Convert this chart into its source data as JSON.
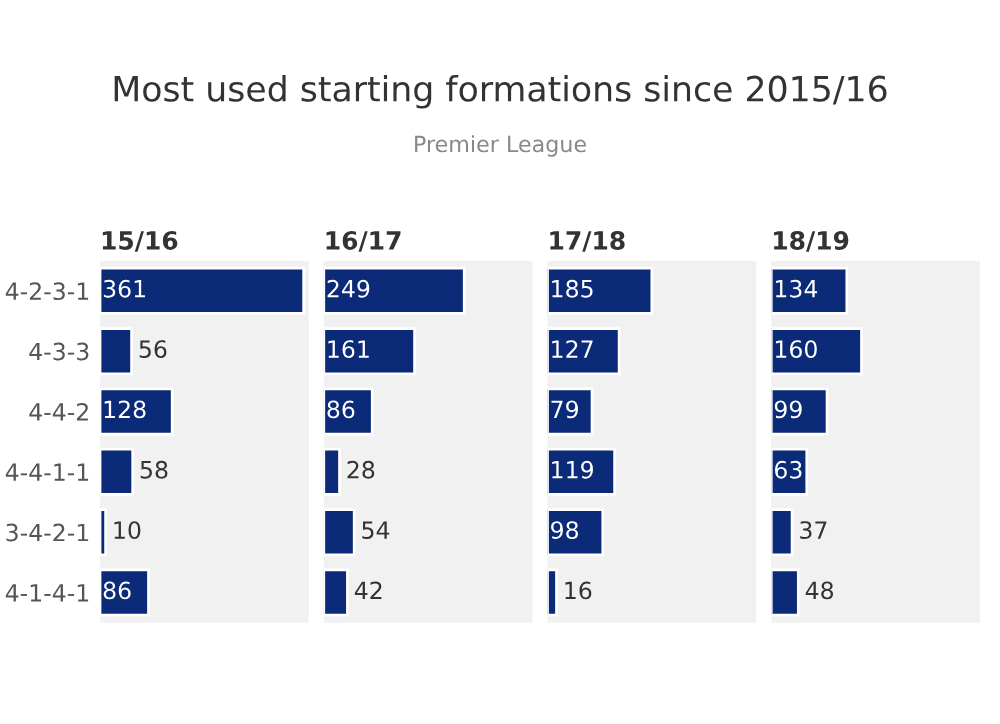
{
  "chart_data": [
    {
      "type": "bar",
      "orientation": "horizontal",
      "title": "15/16",
      "annotations": [
        "Most used starting formations since 2015/16",
        "Premier League"
      ],
      "categories": [
        "4-2-3-1",
        "4-3-3",
        "4-4-2",
        "4-4-1-1",
        "3-4-2-1",
        "4-1-4-1"
      ],
      "values": [
        361,
        56,
        128,
        58,
        10,
        86
      ],
      "color": "#0b2a78",
      "xlim": [
        0,
        370
      ],
      "data_labels": true,
      "tick_labels": "y"
    },
    {
      "type": "bar",
      "orientation": "horizontal",
      "title": "16/17",
      "categories": [
        null,
        null,
        null,
        null,
        null,
        null
      ],
      "values": [
        249,
        161,
        86,
        28,
        54,
        42
      ],
      "color": "#0b2a78",
      "xlim": [
        0,
        370
      ],
      "data_labels": true,
      "tick_labels": false
    },
    {
      "type": "bar",
      "orientation": "horizontal",
      "title": "17/18",
      "categories": [
        null,
        null,
        null,
        null,
        null,
        null
      ],
      "values": [
        185,
        127,
        79,
        119,
        98,
        16
      ],
      "color": "#0b2a78",
      "xlim": [
        0,
        370
      ],
      "data_labels": true,
      "tick_labels": false
    },
    {
      "type": "bar",
      "orientation": "horizontal",
      "title": "18/19",
      "categories": [
        null,
        null,
        null,
        null,
        null,
        null
      ],
      "values": [
        134,
        160,
        99,
        63,
        37,
        48
      ],
      "color": "#0b2a78",
      "xlim": [
        0,
        370
      ],
      "data_labels": true,
      "tick_labels": false
    }
  ]
}
